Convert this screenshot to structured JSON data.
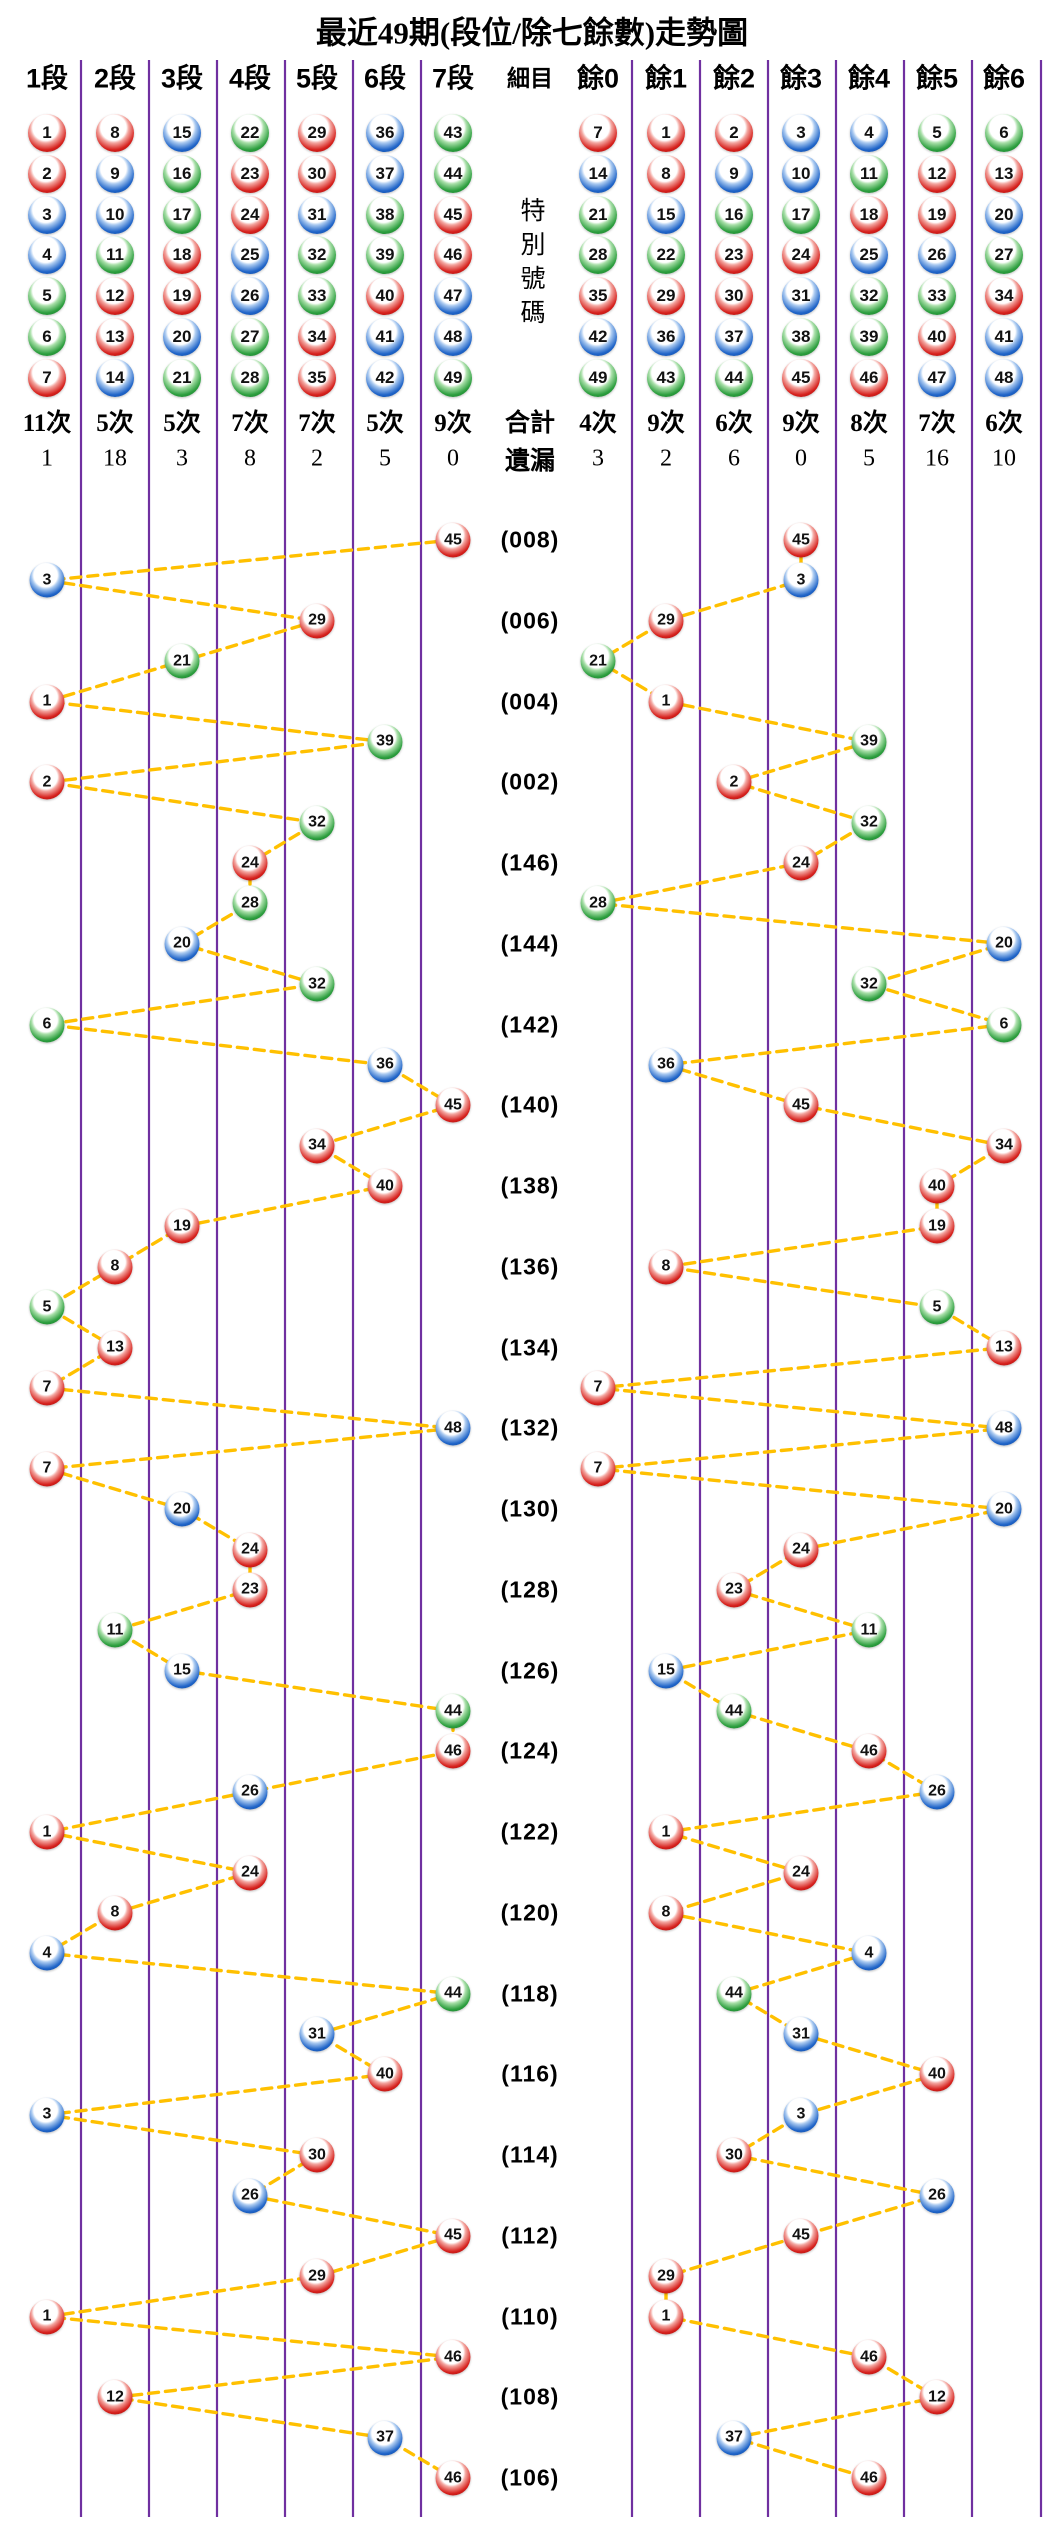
{
  "title": "最近49期(段位/除七餘數)走勢圖",
  "detail": {
    "header": "細目",
    "special": "特別號碼",
    "total": "合計",
    "miss": "遺漏"
  },
  "colors": {
    "grid_line": "#7030A0",
    "connector": "#FFC000",
    "red": "#C00000",
    "blue": "#1F64C8",
    "green": "#2C9E3E",
    "text": "#000000"
  },
  "ball_colors": {
    "red": [
      1,
      2,
      7,
      8,
      12,
      13,
      18,
      19,
      23,
      24,
      29,
      30,
      34,
      35,
      40,
      45,
      46
    ],
    "blue": [
      3,
      4,
      9,
      10,
      14,
      15,
      20,
      25,
      26,
      31,
      36,
      37,
      41,
      42,
      47,
      48
    ],
    "green": [
      5,
      6,
      11,
      16,
      17,
      21,
      22,
      27,
      28,
      32,
      33,
      38,
      39,
      43,
      44,
      49
    ]
  },
  "chart_data": {
    "type": "scatter",
    "title": "最近49期(段位/除七餘數)走勢圖",
    "description": "Special number of each of the last 49 draws, plotted by segment column (left block) and by mod-7 remainder column (right block); consecutive draws joined by dashed connectors.",
    "left_axis": {
      "columns": [
        {
          "label": "1段",
          "balls": [
            1,
            2,
            3,
            4,
            5,
            6,
            7
          ],
          "count": "11次",
          "miss": "1"
        },
        {
          "label": "2段",
          "balls": [
            8,
            9,
            10,
            11,
            12,
            13,
            14
          ],
          "count": "5次",
          "miss": "18"
        },
        {
          "label": "3段",
          "balls": [
            15,
            16,
            17,
            18,
            19,
            20,
            21
          ],
          "count": "5次",
          "miss": "3"
        },
        {
          "label": "4段",
          "balls": [
            22,
            23,
            24,
            25,
            26,
            27,
            28
          ],
          "count": "7次",
          "miss": "8"
        },
        {
          "label": "5段",
          "balls": [
            29,
            30,
            31,
            32,
            33,
            34,
            35
          ],
          "count": "7次",
          "miss": "2"
        },
        {
          "label": "6段",
          "balls": [
            36,
            37,
            38,
            39,
            40,
            41,
            42
          ],
          "count": "5次",
          "miss": "5"
        },
        {
          "label": "7段",
          "balls": [
            43,
            44,
            45,
            46,
            47,
            48,
            49
          ],
          "count": "9次",
          "miss": "0"
        }
      ]
    },
    "right_axis": {
      "columns": [
        {
          "label": "餘0",
          "balls": [
            7,
            14,
            21,
            28,
            35,
            42,
            49
          ],
          "count": "4次",
          "miss": "3"
        },
        {
          "label": "餘1",
          "balls": [
            1,
            8,
            15,
            22,
            29,
            36,
            43
          ],
          "count": "9次",
          "miss": "2"
        },
        {
          "label": "餘2",
          "balls": [
            2,
            9,
            16,
            23,
            30,
            37,
            44
          ],
          "count": "6次",
          "miss": "6"
        },
        {
          "label": "餘3",
          "balls": [
            3,
            10,
            17,
            24,
            31,
            38,
            45
          ],
          "count": "9次",
          "miss": "0"
        },
        {
          "label": "餘4",
          "balls": [
            4,
            11,
            18,
            25,
            32,
            39,
            46
          ],
          "count": "8次",
          "miss": "5"
        },
        {
          "label": "餘5",
          "balls": [
            5,
            12,
            19,
            26,
            33,
            40,
            47
          ],
          "count": "7次",
          "miss": "16"
        },
        {
          "label": "餘6",
          "balls": [
            6,
            13,
            20,
            27,
            34,
            41,
            48
          ],
          "count": "6次",
          "miss": "10"
        }
      ]
    },
    "rows": [
      {
        "period": "(008)",
        "ball": 45
      },
      {
        "period": "",
        "ball": 3
      },
      {
        "period": "(006)",
        "ball": 29
      },
      {
        "period": "",
        "ball": 21
      },
      {
        "period": "(004)",
        "ball": 1
      },
      {
        "period": "",
        "ball": 39
      },
      {
        "period": "(002)",
        "ball": 2
      },
      {
        "period": "",
        "ball": 32
      },
      {
        "period": "(146)",
        "ball": 24
      },
      {
        "period": "",
        "ball": 28
      },
      {
        "period": "(144)",
        "ball": 20
      },
      {
        "period": "",
        "ball": 32
      },
      {
        "period": "(142)",
        "ball": 6
      },
      {
        "period": "",
        "ball": 36
      },
      {
        "period": "(140)",
        "ball": 45
      },
      {
        "period": "",
        "ball": 34
      },
      {
        "period": "(138)",
        "ball": 40
      },
      {
        "period": "",
        "ball": 19
      },
      {
        "period": "(136)",
        "ball": 8
      },
      {
        "period": "",
        "ball": 5
      },
      {
        "period": "(134)",
        "ball": 13
      },
      {
        "period": "",
        "ball": 7
      },
      {
        "period": "(132)",
        "ball": 48
      },
      {
        "period": "",
        "ball": 7
      },
      {
        "period": "(130)",
        "ball": 20
      },
      {
        "period": "",
        "ball": 24
      },
      {
        "period": "(128)",
        "ball": 23
      },
      {
        "period": "",
        "ball": 11
      },
      {
        "period": "(126)",
        "ball": 15
      },
      {
        "period": "",
        "ball": 44
      },
      {
        "period": "(124)",
        "ball": 46
      },
      {
        "period": "",
        "ball": 26
      },
      {
        "period": "(122)",
        "ball": 1
      },
      {
        "period": "",
        "ball": 24
      },
      {
        "period": "(120)",
        "ball": 8
      },
      {
        "period": "",
        "ball": 4
      },
      {
        "period": "(118)",
        "ball": 44
      },
      {
        "period": "",
        "ball": 31
      },
      {
        "period": "(116)",
        "ball": 40
      },
      {
        "period": "",
        "ball": 3
      },
      {
        "period": "(114)",
        "ball": 30
      },
      {
        "period": "",
        "ball": 26
      },
      {
        "period": "(112)",
        "ball": 45
      },
      {
        "period": "",
        "ball": 29
      },
      {
        "period": "(110)",
        "ball": 1
      },
      {
        "period": "",
        "ball": 46
      },
      {
        "period": "(108)",
        "ball": 12
      },
      {
        "period": "",
        "ball": 37
      },
      {
        "period": "(106)",
        "ball": 46
      }
    ]
  }
}
